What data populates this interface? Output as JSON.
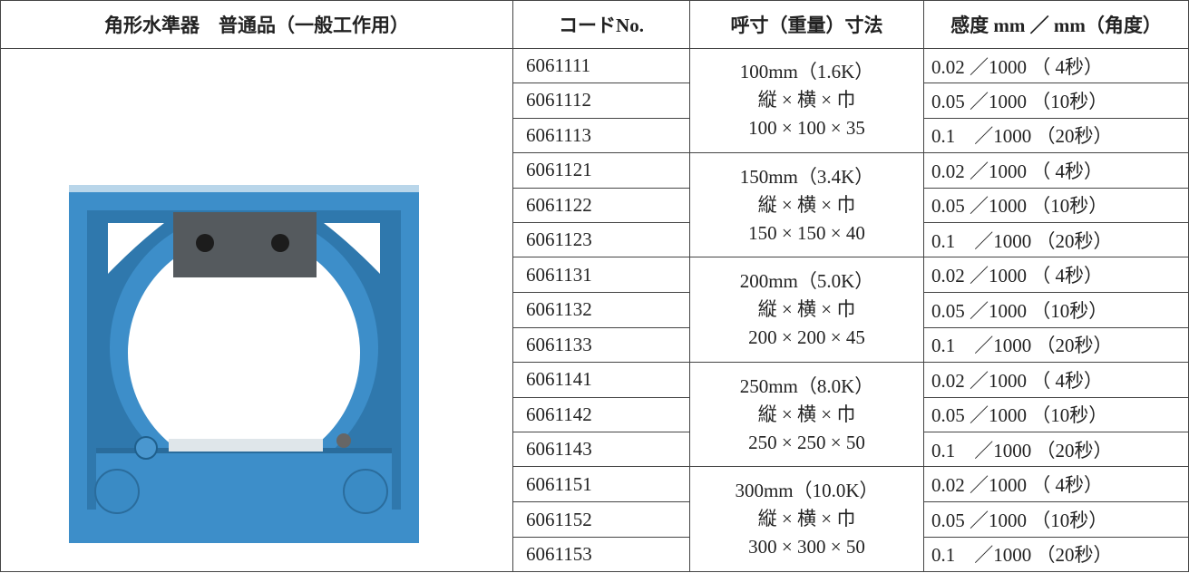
{
  "table": {
    "header": [
      "角形水準器　普通品（一般工作用）",
      "コードNo.",
      "呼寸（重量）寸法",
      "感度 mm ／ mm（角度）"
    ],
    "groups": [
      {
        "size": [
          "100mm（1.6K）",
          "縦 × 横 × 巾",
          "100 × 100 × 35"
        ],
        "rows": [
          [
            "6061111",
            "0.02 ／1000 （ 4秒）"
          ],
          [
            "6061112",
            "0.05 ／1000 （10秒）"
          ],
          [
            "6061113",
            "0.1　／1000 （20秒）"
          ]
        ]
      },
      {
        "size": [
          "150mm（3.4K）",
          "縦 × 横 × 巾",
          "150 × 150 × 40"
        ],
        "rows": [
          [
            "6061121",
            "0.02 ／1000 （ 4秒）"
          ],
          [
            "6061122",
            "0.05 ／1000 （10秒）"
          ],
          [
            "6061123",
            "0.1　／1000 （20秒）"
          ]
        ]
      },
      {
        "size": [
          "200mm（5.0K）",
          "縦 × 横 × 巾",
          "200 × 200 × 45"
        ],
        "rows": [
          [
            "6061131",
            "0.02 ／1000 （ 4秒）"
          ],
          [
            "6061132",
            "0.05 ／1000 （10秒）"
          ],
          [
            "6061133",
            "0.1　／1000 （20秒）"
          ]
        ]
      },
      {
        "size": [
          "250mm（8.0K）",
          "縦 × 横 × 巾",
          "250 × 250 × 50"
        ],
        "rows": [
          [
            "6061141",
            "0.02 ／1000 （ 4秒）"
          ],
          [
            "6061142",
            "0.05 ／1000 （10秒）"
          ],
          [
            "6061143",
            "0.1　／1000 （20秒）"
          ]
        ]
      },
      {
        "size": [
          "300mm（10.0K）",
          "縦 × 横 × 巾",
          "300 × 300 × 50"
        ],
        "rows": [
          [
            "6061151",
            "0.02 ／1000 （ 4秒）"
          ],
          [
            "6061152",
            "0.05 ／1000 （10秒）"
          ],
          [
            "6061153",
            "0.1　／1000 （20秒）"
          ]
        ]
      }
    ]
  }
}
